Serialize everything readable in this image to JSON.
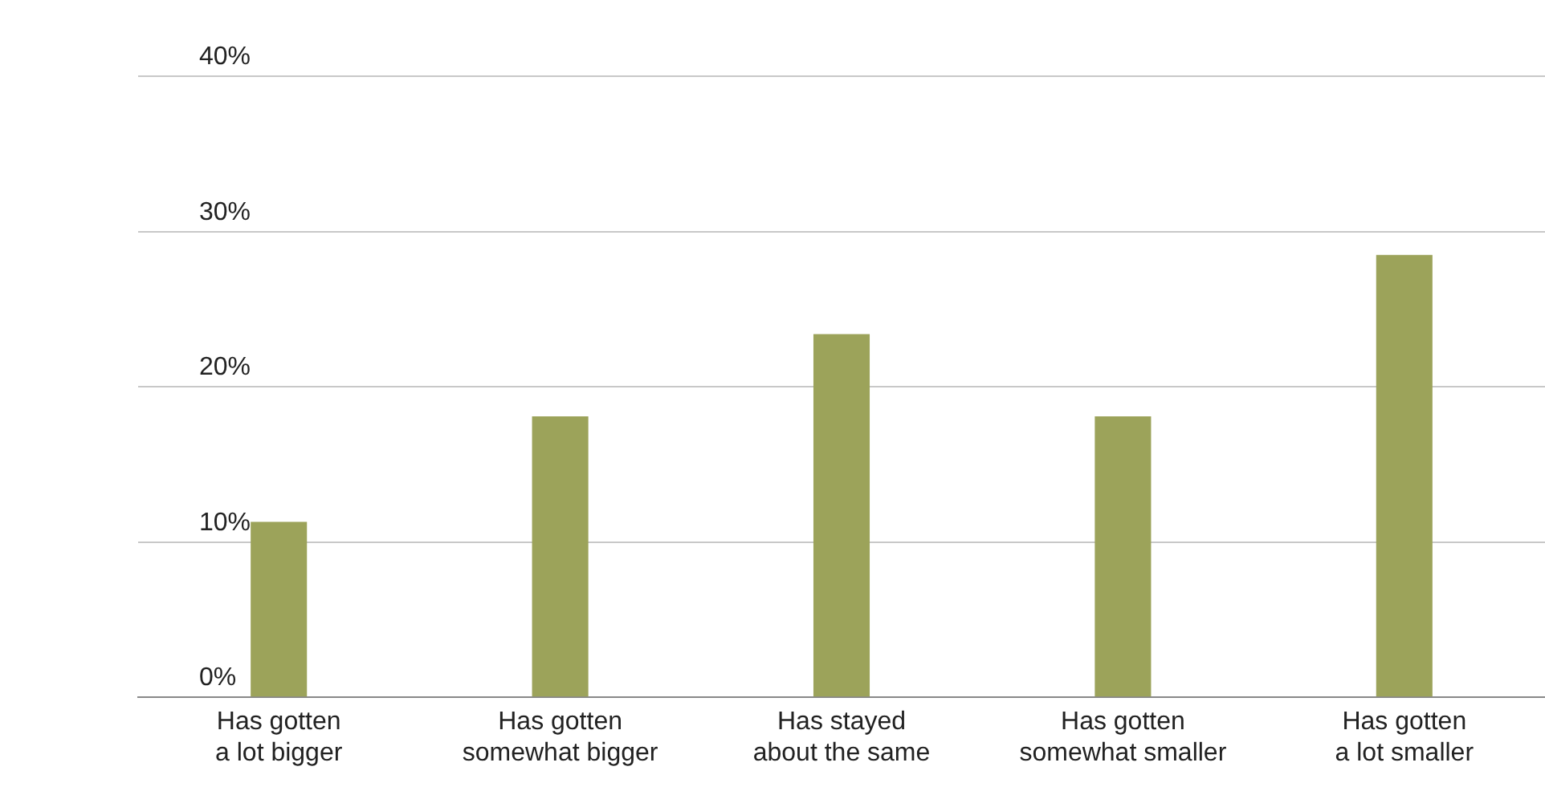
{
  "chart_data": {
    "type": "bar",
    "categories": [
      "Has gotten a lot bigger",
      "Has gotten somewhat bigger",
      "Has stayed about the same",
      "Has gotten somewhat smaller",
      "Has gotten a lot smaller"
    ],
    "values": [
      11.3,
      18.1,
      23.4,
      18.1,
      28.5
    ],
    "color": "#9ca35a",
    "ylim": [
      0,
      40
    ],
    "yticks": [
      {
        "value": 0,
        "label": "0%"
      },
      {
        "value": 10,
        "label": "10%"
      },
      {
        "value": 20,
        "label": "20%"
      },
      {
        "value": 30,
        "label": "30%"
      },
      {
        "value": 40,
        "label": "40%"
      }
    ],
    "grid": "y"
  }
}
